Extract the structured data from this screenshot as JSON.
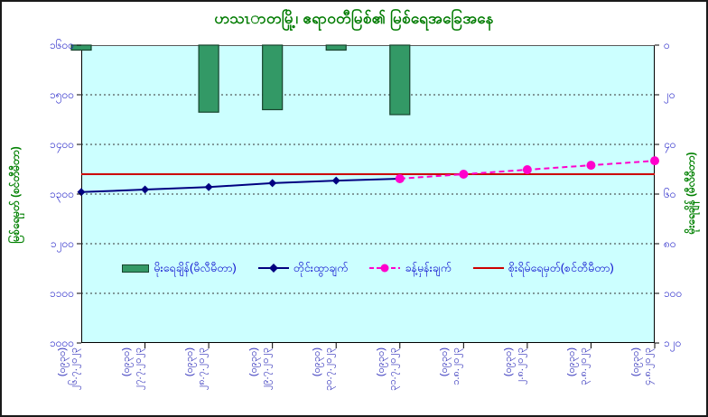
{
  "title": "ဟသၤာတမြို့၊ ဧရာဝတီမြစ်၏ မြစ်ရေအခြေအနေ",
  "chart_data": {
    "type": "bar",
    "subtype": "combo: inverted rainfall bars (right axis) + observed line + forecast dashed line + danger hline",
    "categories": [
      "၂၆.၇.၂၀၂၃",
      "၂၇.၇.၂၀၂၃",
      "၂၈.၇.၂၀၂၃",
      "၂၉.၇.၂၀၂၃",
      "၃၀.၇.၂၀၂၃",
      "၃၁.၇.၂၀၂၃",
      "၁.၈.၂၀၂၃",
      "၂.၈.၂၀၂၃",
      "၃.၈.၂၀၂၃",
      "၄.၈.၂၀၂၃"
    ],
    "category_time_suffix": "(၀၉၃၀)",
    "left_axis": {
      "title": "မြစ်ရေမှတ် (စင်တီမီတာ)",
      "min": 1000,
      "max": 1600,
      "step": 100,
      "tick_labels": [
        "၁၆၀၀",
        "၁၅၀၀",
        "၁၄၀၀",
        "၁၃၀၀",
        "၁၂၀၀",
        "၁၁၀၀",
        "၁၀၀၀"
      ],
      "grid": true
    },
    "right_axis": {
      "title": "မိုးရေချိန် (မီလီမီတာ)",
      "min": 0,
      "max": 120,
      "step": 20,
      "inverted": true,
      "tick_labels": [
        "၀",
        "၂၀",
        "၄၀",
        "၆၀",
        "၈၀",
        "၁၀၀",
        "၁၂၀"
      ]
    },
    "series": [
      {
        "name": "မိုးရေချိန်(မီလီမီတာ)",
        "type": "bar",
        "axis": "right",
        "values": [
          2,
          0,
          27,
          26,
          2,
          28,
          0,
          0,
          0,
          0
        ]
      },
      {
        "name": "တိုင်းထွာချက်",
        "type": "line",
        "axis": "left",
        "marker": "diamond",
        "values": [
          1304,
          1309,
          1314,
          1322,
          1327,
          1331,
          null,
          null,
          null,
          null
        ]
      },
      {
        "name": "ခန့်မှန်းချက်",
        "type": "line-dashed",
        "axis": "left",
        "marker": "circle",
        "values": [
          null,
          null,
          null,
          null,
          null,
          1331,
          1340,
          1349,
          1358,
          1367
        ]
      },
      {
        "name": "စိုးရိမ်ရေမှတ်(စင်တီမီတာ)",
        "type": "hline",
        "axis": "left",
        "value": 1340
      }
    ],
    "legend_position": "bottom-inside",
    "colors": {
      "plot_bg": "#CCFFFF",
      "bar_fill": "#339966",
      "bar_border": "#17432D",
      "observed_line": "#000080",
      "forecast_line": "#FF00CC",
      "danger_line": "#CC0000",
      "title_text": "#007B00",
      "axis_value_text": "#2323C8",
      "axis_title_text": "#008000",
      "legend_text": "#0000CC",
      "gridline": "#333333"
    }
  }
}
